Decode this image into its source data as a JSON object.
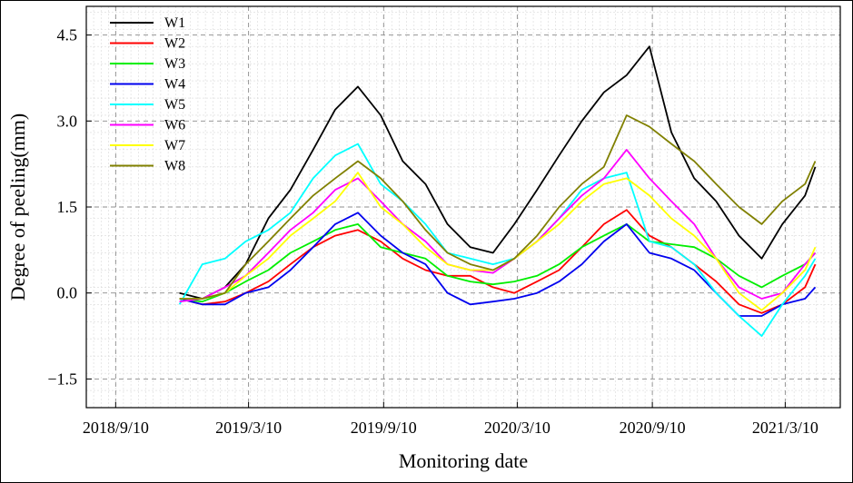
{
  "chart_data": {
    "type": "line",
    "title": "",
    "xlabel": "Monitoring date",
    "ylabel": "Degree of peeling(mm)",
    "xlim": [
      "2018-08-01",
      "2021-05-24"
    ],
    "ylim": [
      -2.0,
      5.0
    ],
    "x_tick_labels": [
      "2018/9/10",
      "2019/3/10",
      "2019/9/10",
      "2020/3/10",
      "2020/9/10",
      "2021/3/10"
    ],
    "x_tick_dates": [
      "2018-09-10",
      "2019-03-10",
      "2019-09-10",
      "2020-03-10",
      "2020-09-10",
      "2021-03-10"
    ],
    "y_tick_labels": [
      "4.5",
      "3.0",
      "1.5",
      "0.0",
      "−1.5"
    ],
    "y_tick_values": [
      4.5,
      3.0,
      1.5,
      0.0,
      -1.5
    ],
    "grid": true,
    "legend_position": "top-left",
    "x": [
      "2018-12-06",
      "2019-01-06",
      "2019-02-06",
      "2019-03-06",
      "2019-04-06",
      "2019-05-06",
      "2019-06-06",
      "2019-07-06",
      "2019-08-06",
      "2019-09-06",
      "2019-10-06",
      "2019-11-06",
      "2019-12-06",
      "2020-01-06",
      "2020-02-06",
      "2020-03-06",
      "2020-04-06",
      "2020-05-06",
      "2020-06-06",
      "2020-07-06",
      "2020-08-06",
      "2020-09-06",
      "2020-10-06",
      "2020-11-06",
      "2020-12-06",
      "2021-01-06",
      "2021-02-06",
      "2021-03-06",
      "2021-04-06",
      "2021-04-20"
    ],
    "series": [
      {
        "name": "W1",
        "color": "#000000",
        "values": [
          0.0,
          -0.1,
          0.1,
          0.5,
          1.3,
          1.8,
          2.5,
          3.2,
          3.6,
          3.1,
          2.3,
          1.9,
          1.2,
          0.8,
          0.7,
          1.2,
          1.8,
          2.4,
          3.0,
          3.5,
          3.8,
          4.3,
          2.8,
          2.0,
          1.6,
          1.0,
          0.6,
          1.2,
          1.7,
          2.2
        ]
      },
      {
        "name": "W2",
        "color": "#ff0000",
        "values": [
          -0.1,
          -0.2,
          -0.15,
          0.0,
          0.2,
          0.5,
          0.8,
          1.0,
          1.1,
          0.9,
          0.6,
          0.4,
          0.3,
          0.3,
          0.1,
          0.0,
          0.2,
          0.4,
          0.8,
          1.2,
          1.45,
          1.0,
          0.8,
          0.5,
          0.2,
          -0.2,
          -0.35,
          -0.2,
          0.1,
          0.5
        ]
      },
      {
        "name": "W3",
        "color": "#00ee00",
        "values": [
          -0.1,
          -0.15,
          0.0,
          0.2,
          0.4,
          0.7,
          0.9,
          1.1,
          1.2,
          0.8,
          0.7,
          0.6,
          0.3,
          0.2,
          0.15,
          0.2,
          0.3,
          0.5,
          0.8,
          1.0,
          1.2,
          0.9,
          0.85,
          0.8,
          0.6,
          0.3,
          0.1,
          0.3,
          0.5,
          0.7
        ]
      },
      {
        "name": "W4",
        "color": "#0000ee",
        "values": [
          -0.1,
          -0.2,
          -0.2,
          0.0,
          0.1,
          0.4,
          0.8,
          1.2,
          1.4,
          1.0,
          0.7,
          0.5,
          0.0,
          -0.2,
          -0.15,
          -0.1,
          0.0,
          0.2,
          0.5,
          0.9,
          1.2,
          0.7,
          0.6,
          0.4,
          0.0,
          -0.4,
          -0.4,
          -0.2,
          -0.1,
          0.1
        ]
      },
      {
        "name": "W5",
        "color": "#00ffff",
        "values": [
          -0.2,
          0.5,
          0.6,
          0.9,
          1.1,
          1.4,
          2.0,
          2.4,
          2.6,
          1.9,
          1.6,
          1.2,
          0.7,
          0.6,
          0.5,
          0.6,
          0.9,
          1.3,
          1.8,
          2.0,
          2.1,
          0.9,
          0.8,
          0.5,
          0.0,
          -0.4,
          -0.75,
          -0.2,
          0.3,
          0.6
        ]
      },
      {
        "name": "W6",
        "color": "#ff00ff",
        "values": [
          -0.15,
          -0.1,
          0.1,
          0.3,
          0.7,
          1.1,
          1.4,
          1.8,
          2.0,
          1.6,
          1.2,
          0.9,
          0.5,
          0.4,
          0.35,
          0.6,
          0.9,
          1.3,
          1.7,
          2.0,
          2.5,
          2.0,
          1.6,
          1.2,
          0.6,
          0.1,
          -0.1,
          0.0,
          0.5,
          0.7
        ]
      },
      {
        "name": "W7",
        "color": "#ffff00",
        "values": [
          -0.1,
          -0.1,
          0.0,
          0.3,
          0.6,
          1.0,
          1.3,
          1.6,
          2.1,
          1.5,
          1.2,
          0.8,
          0.5,
          0.4,
          0.4,
          0.6,
          0.9,
          1.2,
          1.6,
          1.9,
          2.0,
          1.7,
          1.3,
          1.0,
          0.6,
          0.0,
          -0.3,
          0.0,
          0.4,
          0.8
        ]
      },
      {
        "name": "W8",
        "color": "#808000",
        "values": [
          -0.1,
          -0.1,
          0.0,
          0.5,
          0.9,
          1.3,
          1.7,
          2.0,
          2.3,
          2.0,
          1.6,
          1.1,
          0.7,
          0.5,
          0.4,
          0.6,
          1.0,
          1.5,
          1.9,
          2.2,
          3.1,
          2.9,
          2.6,
          2.3,
          1.9,
          1.5,
          1.2,
          1.6,
          1.9,
          2.3
        ]
      }
    ]
  }
}
